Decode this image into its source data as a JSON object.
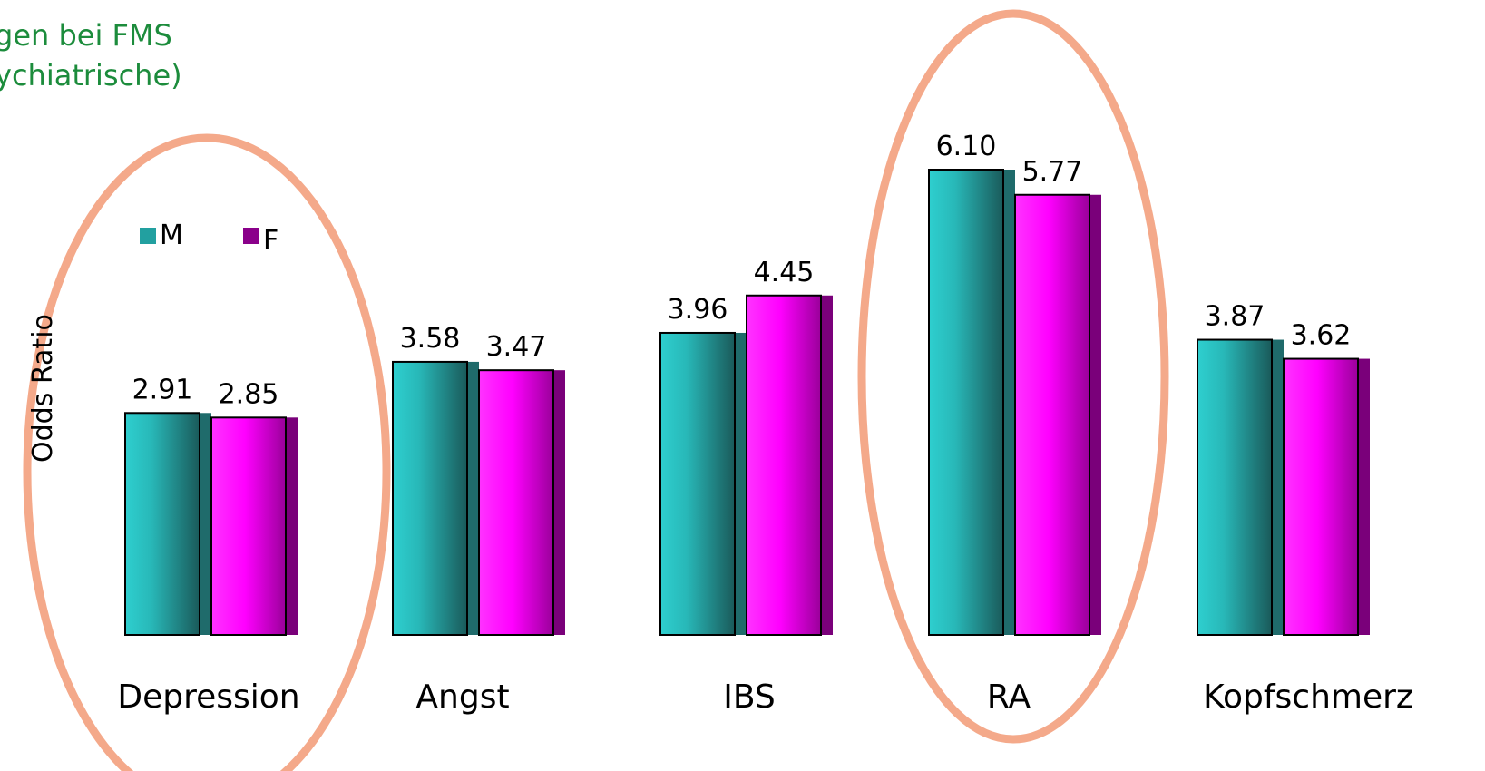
{
  "title_lines": [
    "gen bei FMS",
    "ychiatrische)"
  ],
  "colors": {
    "M": "#22a0a0",
    "F": "#ff00ff",
    "highlight": "#f4a98a"
  },
  "chart_data": {
    "type": "bar",
    "title": "gen bei FMS ychiatrische)",
    "ylabel": "Odds Ratio",
    "xlabel": "",
    "categories": [
      "Depression",
      "Angst",
      "IBS",
      "RA",
      "Kopfschmerz"
    ],
    "series": [
      {
        "name": "M",
        "values": [
          2.91,
          3.58,
          3.96,
          6.1,
          3.87
        ],
        "labels": [
          "2.91",
          "3.58",
          "3.96",
          "6.10",
          "3.87"
        ]
      },
      {
        "name": "F",
        "values": [
          2.85,
          3.47,
          4.45,
          5.77,
          3.62
        ],
        "labels": [
          "2.85",
          "3.47",
          "4.45",
          "5.77",
          "3.62"
        ]
      }
    ],
    "ylim": [
      0,
      6.1
    ],
    "grid": false,
    "legend": "top-left",
    "highlighted_categories": [
      "Depression",
      "RA"
    ]
  }
}
